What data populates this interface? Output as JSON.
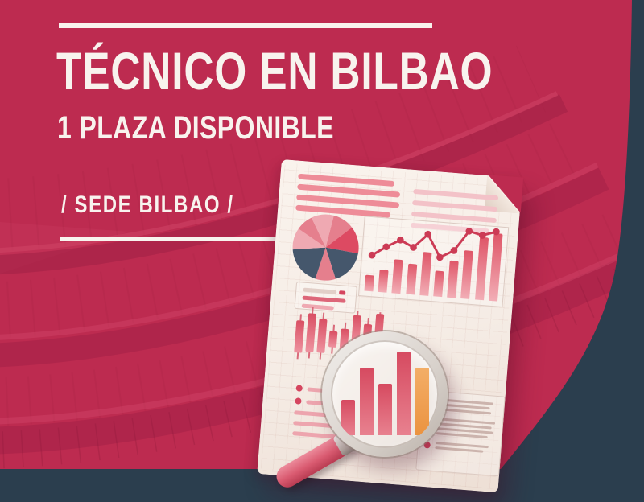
{
  "poster": {
    "title": "TÉCNICO EN BILBAO",
    "vacancies": "1 PLAZA DISPONIBLE",
    "location": "/ SEDE BILBAO /"
  },
  "colors": {
    "background_crimson": "#bd2b50",
    "background_navy": "#2b3e4e",
    "text_white": "#f8f3ee",
    "paper": "#f6eee7",
    "red": "#dd4a62",
    "red_deep": "#cc3b55",
    "pink": "#e57f8d",
    "light_pink": "#efa9b2",
    "navy": "#45576c",
    "orange": "#eb9b4e",
    "beige": "#e2cfc8",
    "red_soft": "#dd6679",
    "line_gray": "#ccb4ad"
  },
  "illustration": {
    "name": "analytics-report-with-magnifier",
    "heading_lines_left": [
      120,
      128,
      128,
      118
    ],
    "heading_lines_right": [
      106,
      106,
      106,
      98
    ],
    "pie_slices": [
      {
        "color": "light_pink",
        "deg": 40
      },
      {
        "color": "pink",
        "deg": 38
      },
      {
        "color": "red",
        "deg": 48
      },
      {
        "color": "navy",
        "deg": 62
      },
      {
        "color": "pink",
        "deg": 36
      },
      {
        "color": "navy",
        "deg": 68
      },
      {
        "color": "light_pink",
        "deg": 38
      },
      {
        "color": "pink",
        "deg": 30
      }
    ],
    "combo_chart": {
      "bar_heights": [
        20,
        28,
        42,
        38,
        54,
        32,
        46,
        60,
        78,
        84
      ],
      "line_values": [
        44,
        56,
        66,
        58,
        76,
        48,
        58,
        84,
        80,
        86
      ]
    },
    "slider_rows": [
      {
        "width": 42,
        "color": "beige",
        "tail": 8
      },
      {
        "width": 54,
        "color": "red_soft"
      },
      {
        "width": 40,
        "color": "light_pink"
      }
    ],
    "candles": [
      [
        18,
        40
      ],
      [
        8,
        48
      ],
      [
        14,
        42
      ],
      [
        28,
        20
      ],
      [
        24,
        26
      ],
      [
        6,
        36
      ],
      [
        16,
        28
      ],
      [
        2,
        46
      ]
    ],
    "bullet_list_left": {
      "dot_rows": [
        54,
        60
      ],
      "plain_rows": [
        64,
        68,
        58
      ]
    },
    "bottom_right_panel": [
      [
        68,
        64,
        66
      ],
      [
        72,
        68,
        70,
        64
      ],
      [
        66,
        60
      ]
    ],
    "magnifier_bars": [
      {
        "height": 44,
        "color": "red"
      },
      {
        "height": 84,
        "color": "red"
      },
      {
        "height": 64,
        "color": "red"
      },
      {
        "height": 104,
        "color": "red"
      },
      {
        "height": 84,
        "color": "orange"
      }
    ]
  }
}
